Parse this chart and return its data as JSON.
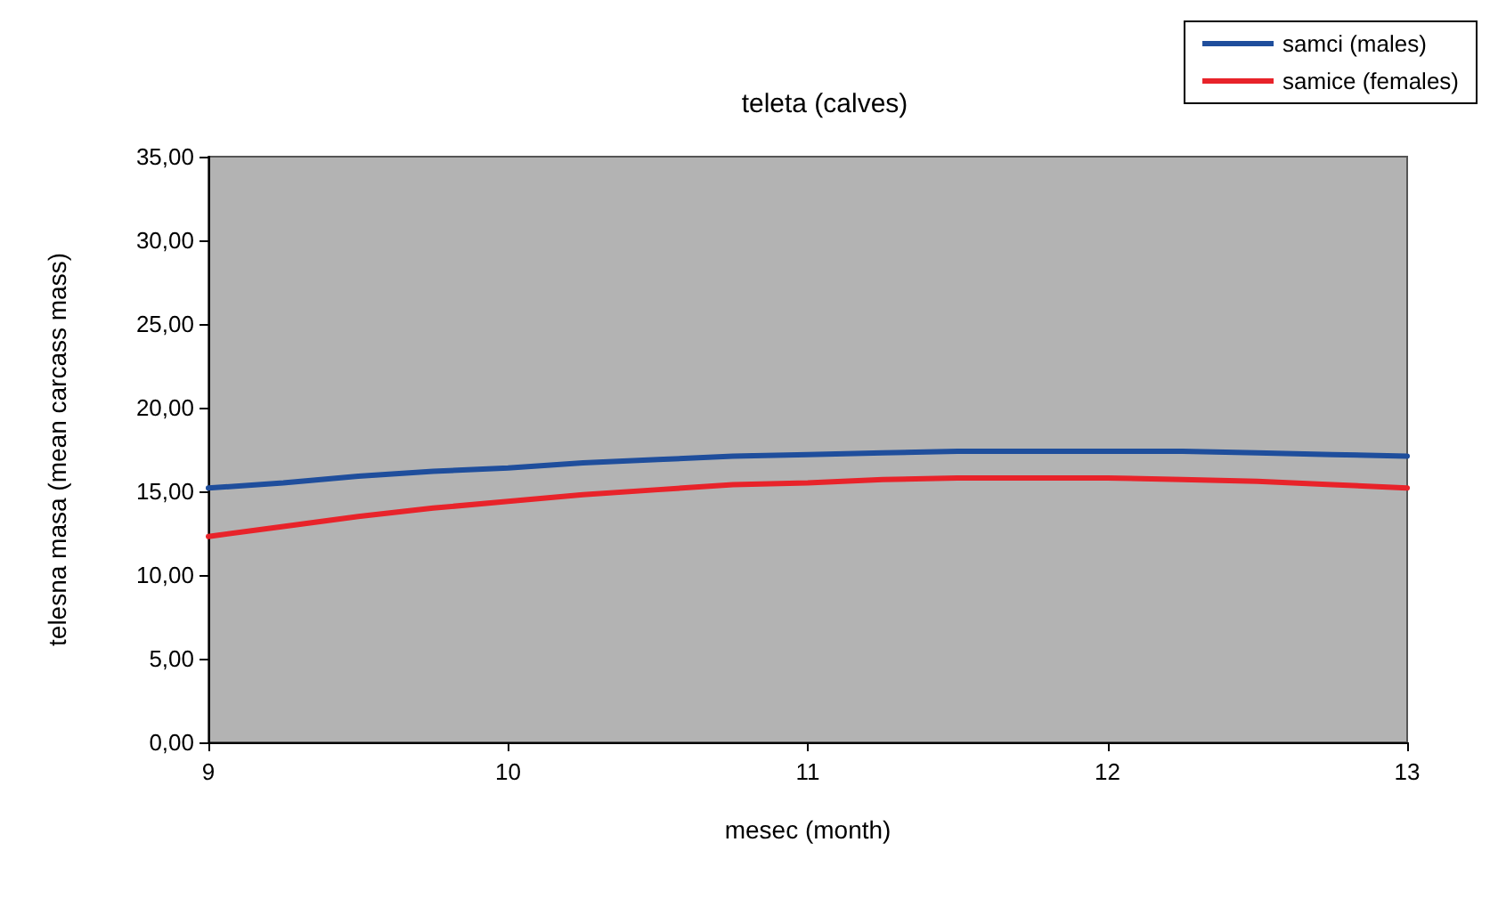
{
  "chart_data": {
    "type": "line",
    "title": "teleta (calves)",
    "xlabel": "mesec (month)",
    "ylabel": "telesna masa (mean carcass mass)",
    "x": [
      9,
      9.25,
      9.5,
      9.75,
      10,
      10.25,
      10.5,
      10.75,
      11,
      11.25,
      11.5,
      11.75,
      12,
      12.25,
      12.5,
      12.75,
      13
    ],
    "series": [
      {
        "name": "samci (males)",
        "color": "#1f4e9c",
        "values": [
          15.2,
          15.5,
          15.9,
          16.2,
          16.4,
          16.7,
          16.9,
          17.1,
          17.2,
          17.3,
          17.4,
          17.4,
          17.4,
          17.4,
          17.3,
          17.2,
          17.1
        ]
      },
      {
        "name": "samice (females)",
        "color": "#e8232a",
        "values": [
          12.3,
          12.9,
          13.5,
          14.0,
          14.4,
          14.8,
          15.1,
          15.4,
          15.5,
          15.7,
          15.8,
          15.8,
          15.8,
          15.7,
          15.6,
          15.4,
          15.2
        ]
      }
    ],
    "xlim": [
      9,
      13
    ],
    "xticks": [
      9,
      10,
      11,
      12,
      13
    ],
    "ylim": [
      0,
      35
    ],
    "yticks": [
      {
        "value": 0,
        "label": "0,00"
      },
      {
        "value": 5,
        "label": "5,00"
      },
      {
        "value": 10,
        "label": "10,00"
      },
      {
        "value": 15,
        "label": "15,00"
      },
      {
        "value": 20,
        "label": "20,00"
      },
      {
        "value": 25,
        "label": "25,00"
      },
      {
        "value": 30,
        "label": "30,00"
      },
      {
        "value": 35,
        "label": "35,00"
      }
    ],
    "grid": false,
    "legend": "top right",
    "marker": "none",
    "line_style": "solid"
  }
}
